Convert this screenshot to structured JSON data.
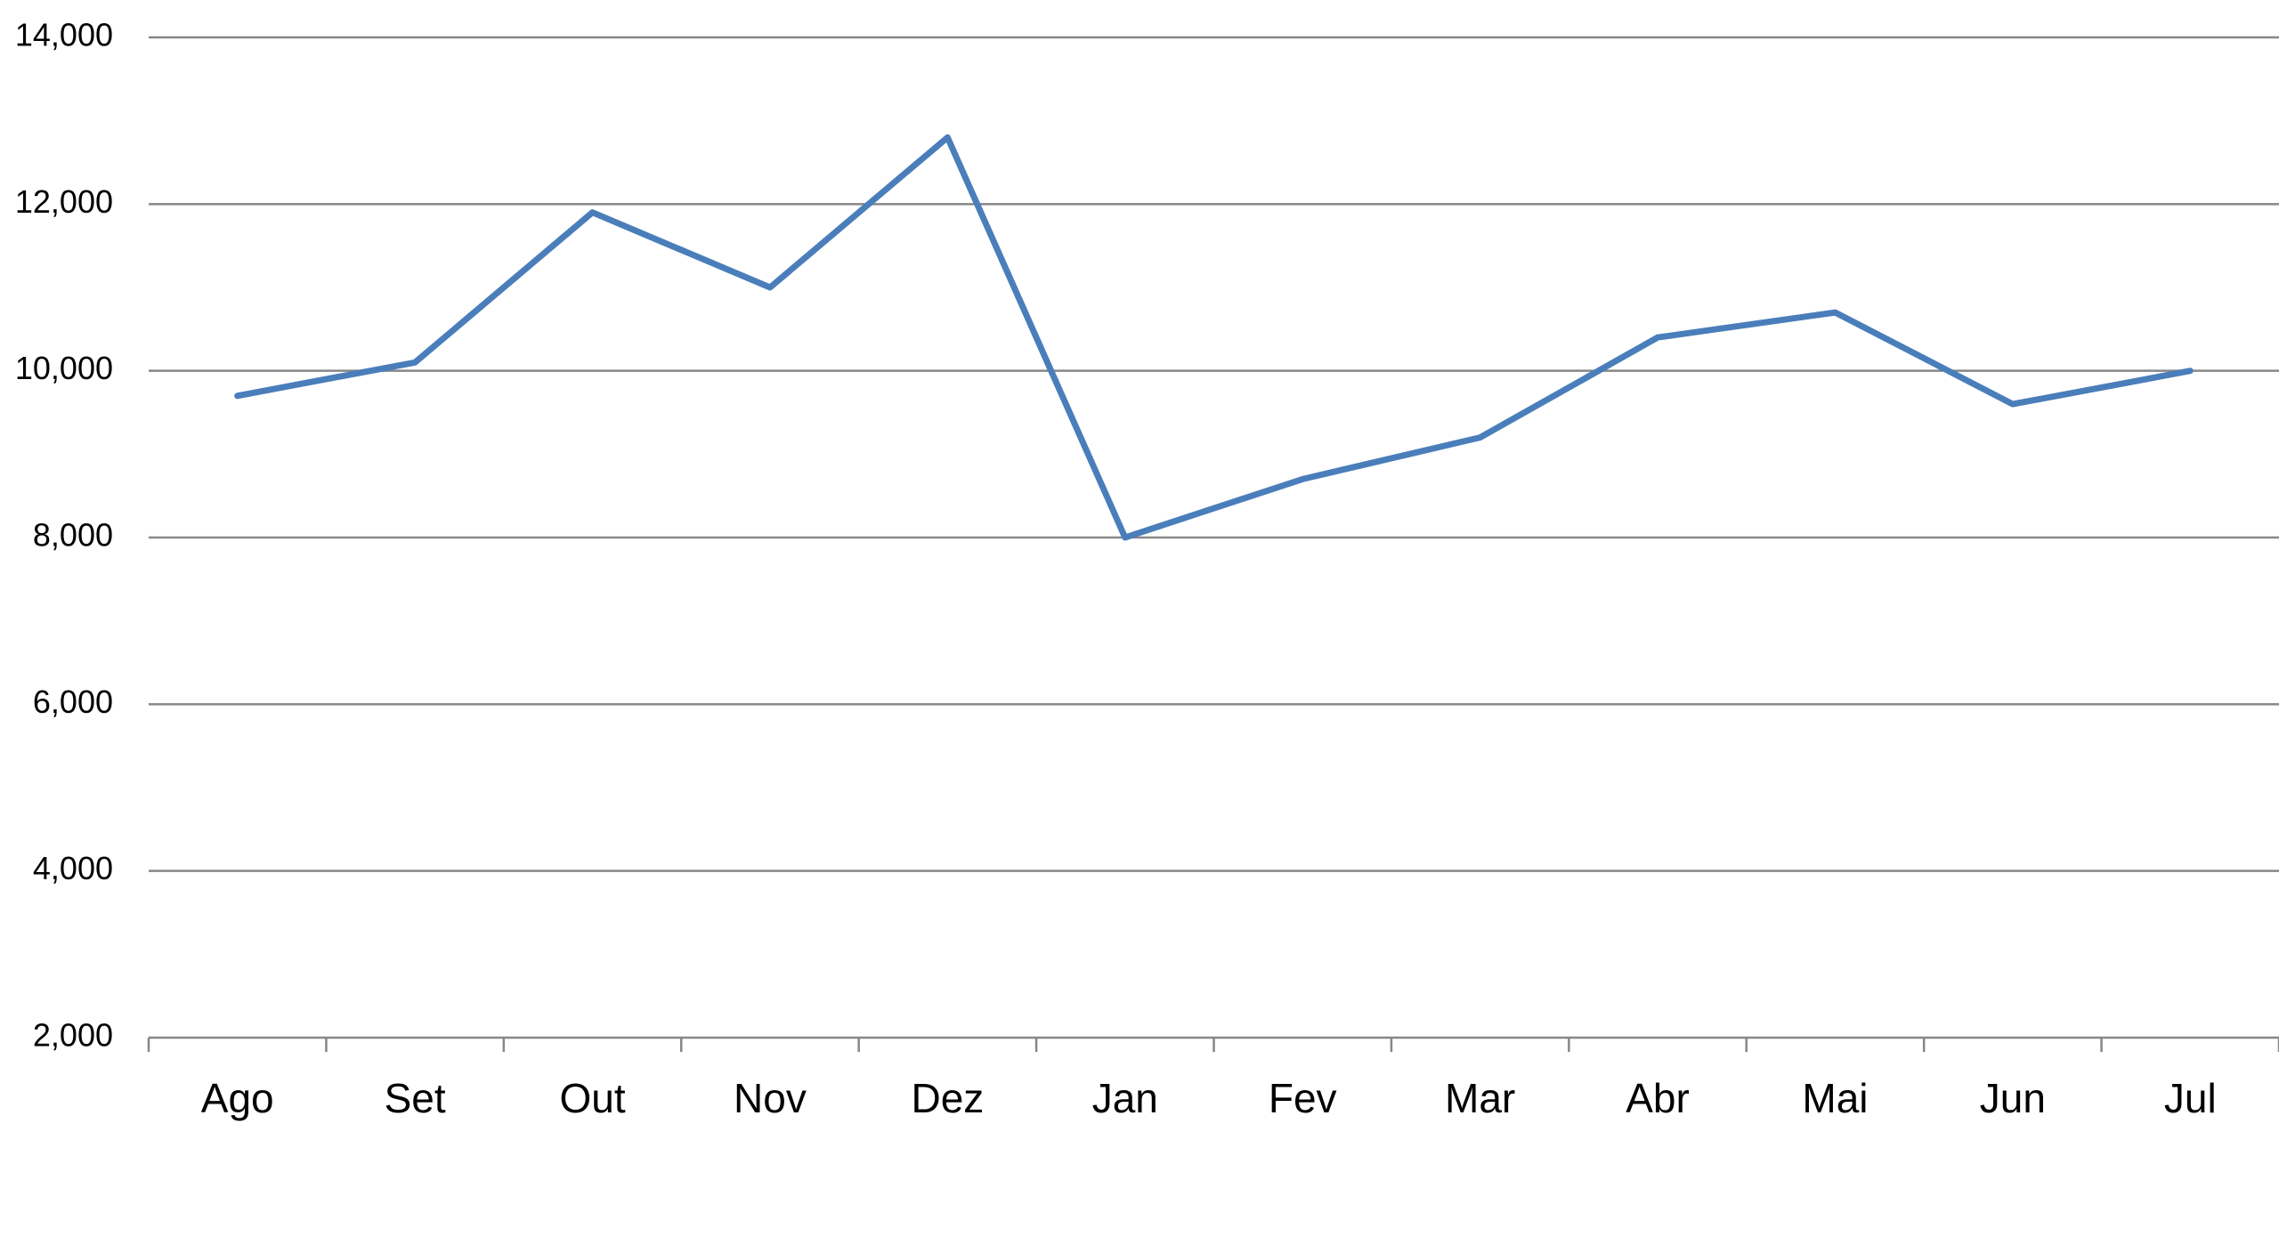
{
  "chart_data": {
    "type": "line",
    "categories": [
      "Ago",
      "Set",
      "Out",
      "Nov",
      "Dez",
      "Jan",
      "Fev",
      "Mar",
      "Abr",
      "Mai",
      "Jun",
      "Jul"
    ],
    "values": [
      9700,
      10100,
      11900,
      11000,
      12800,
      8000,
      8700,
      9200,
      10400,
      10700,
      9600,
      10000
    ],
    "color": "#4a7ebb",
    "ylim": [
      2000,
      14000
    ],
    "yticks": [
      {
        "value": 2000,
        "label": "2,000"
      },
      {
        "value": 4000,
        "label": "4,000"
      },
      {
        "value": 6000,
        "label": "6,000"
      },
      {
        "value": 8000,
        "label": "8,000"
      },
      {
        "value": 10000,
        "label": "10,000"
      },
      {
        "value": 12000,
        "label": "12,000"
      },
      {
        "value": 14000,
        "label": "14,000"
      }
    ],
    "grid": true
  }
}
